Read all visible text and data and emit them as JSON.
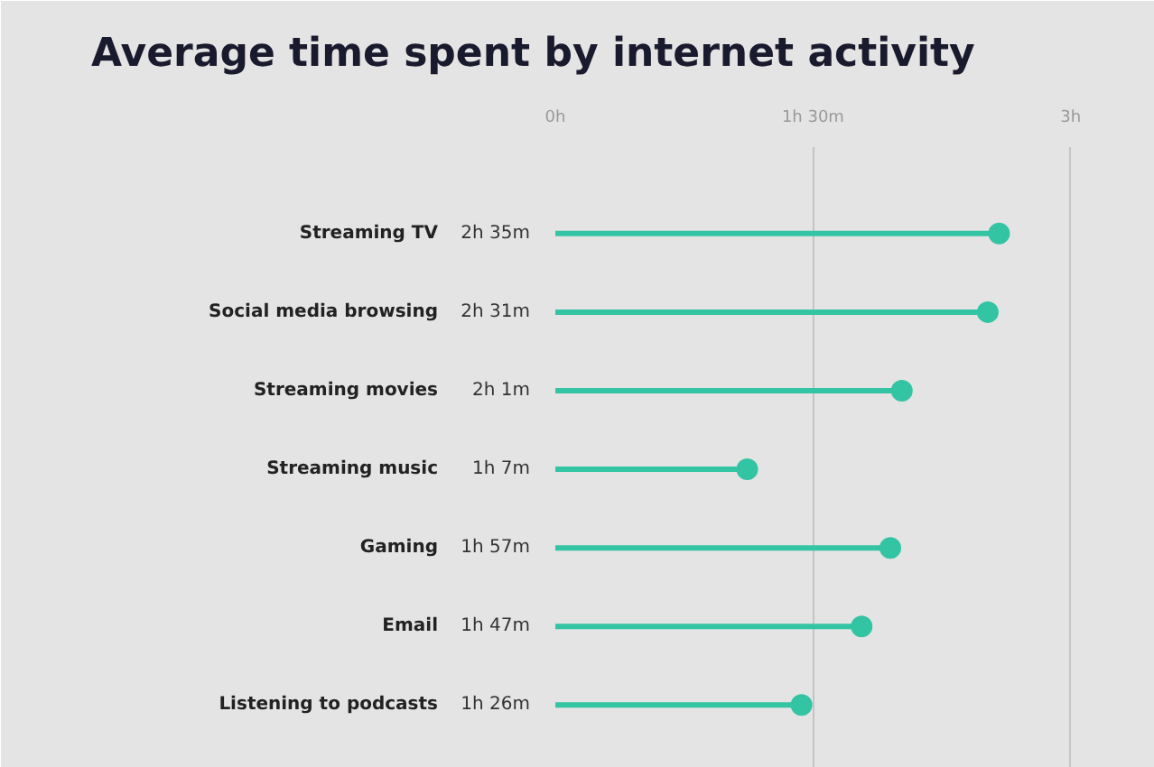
{
  "chart_data": {
    "type": "lollipop",
    "orientation": "horizontal",
    "title": "Average time spent by internet activity",
    "categories": [
      "Streaming TV",
      "Social media browsing",
      "Streaming movies",
      "Streaming music",
      "Gaming",
      "Email",
      "Listening to podcasts"
    ],
    "values": [
      2.583,
      2.517,
      2.017,
      1.117,
      1.95,
      1.783,
      1.433
    ],
    "value_labels": [
      "2h 35m",
      "2h 31m",
      "2h 1m",
      "1h 7m",
      "1h 57m",
      "1h 47m",
      "1h 26m"
    ],
    "color": "#33c4a4",
    "marker": "circle",
    "grid": "x",
    "xlim": [
      0,
      3.08
    ],
    "xticks": [
      {
        "value": 0,
        "label": "0h"
      },
      {
        "value": 1.5,
        "label": "1h 30m"
      },
      {
        "value": 3,
        "label": "3h"
      }
    ]
  }
}
